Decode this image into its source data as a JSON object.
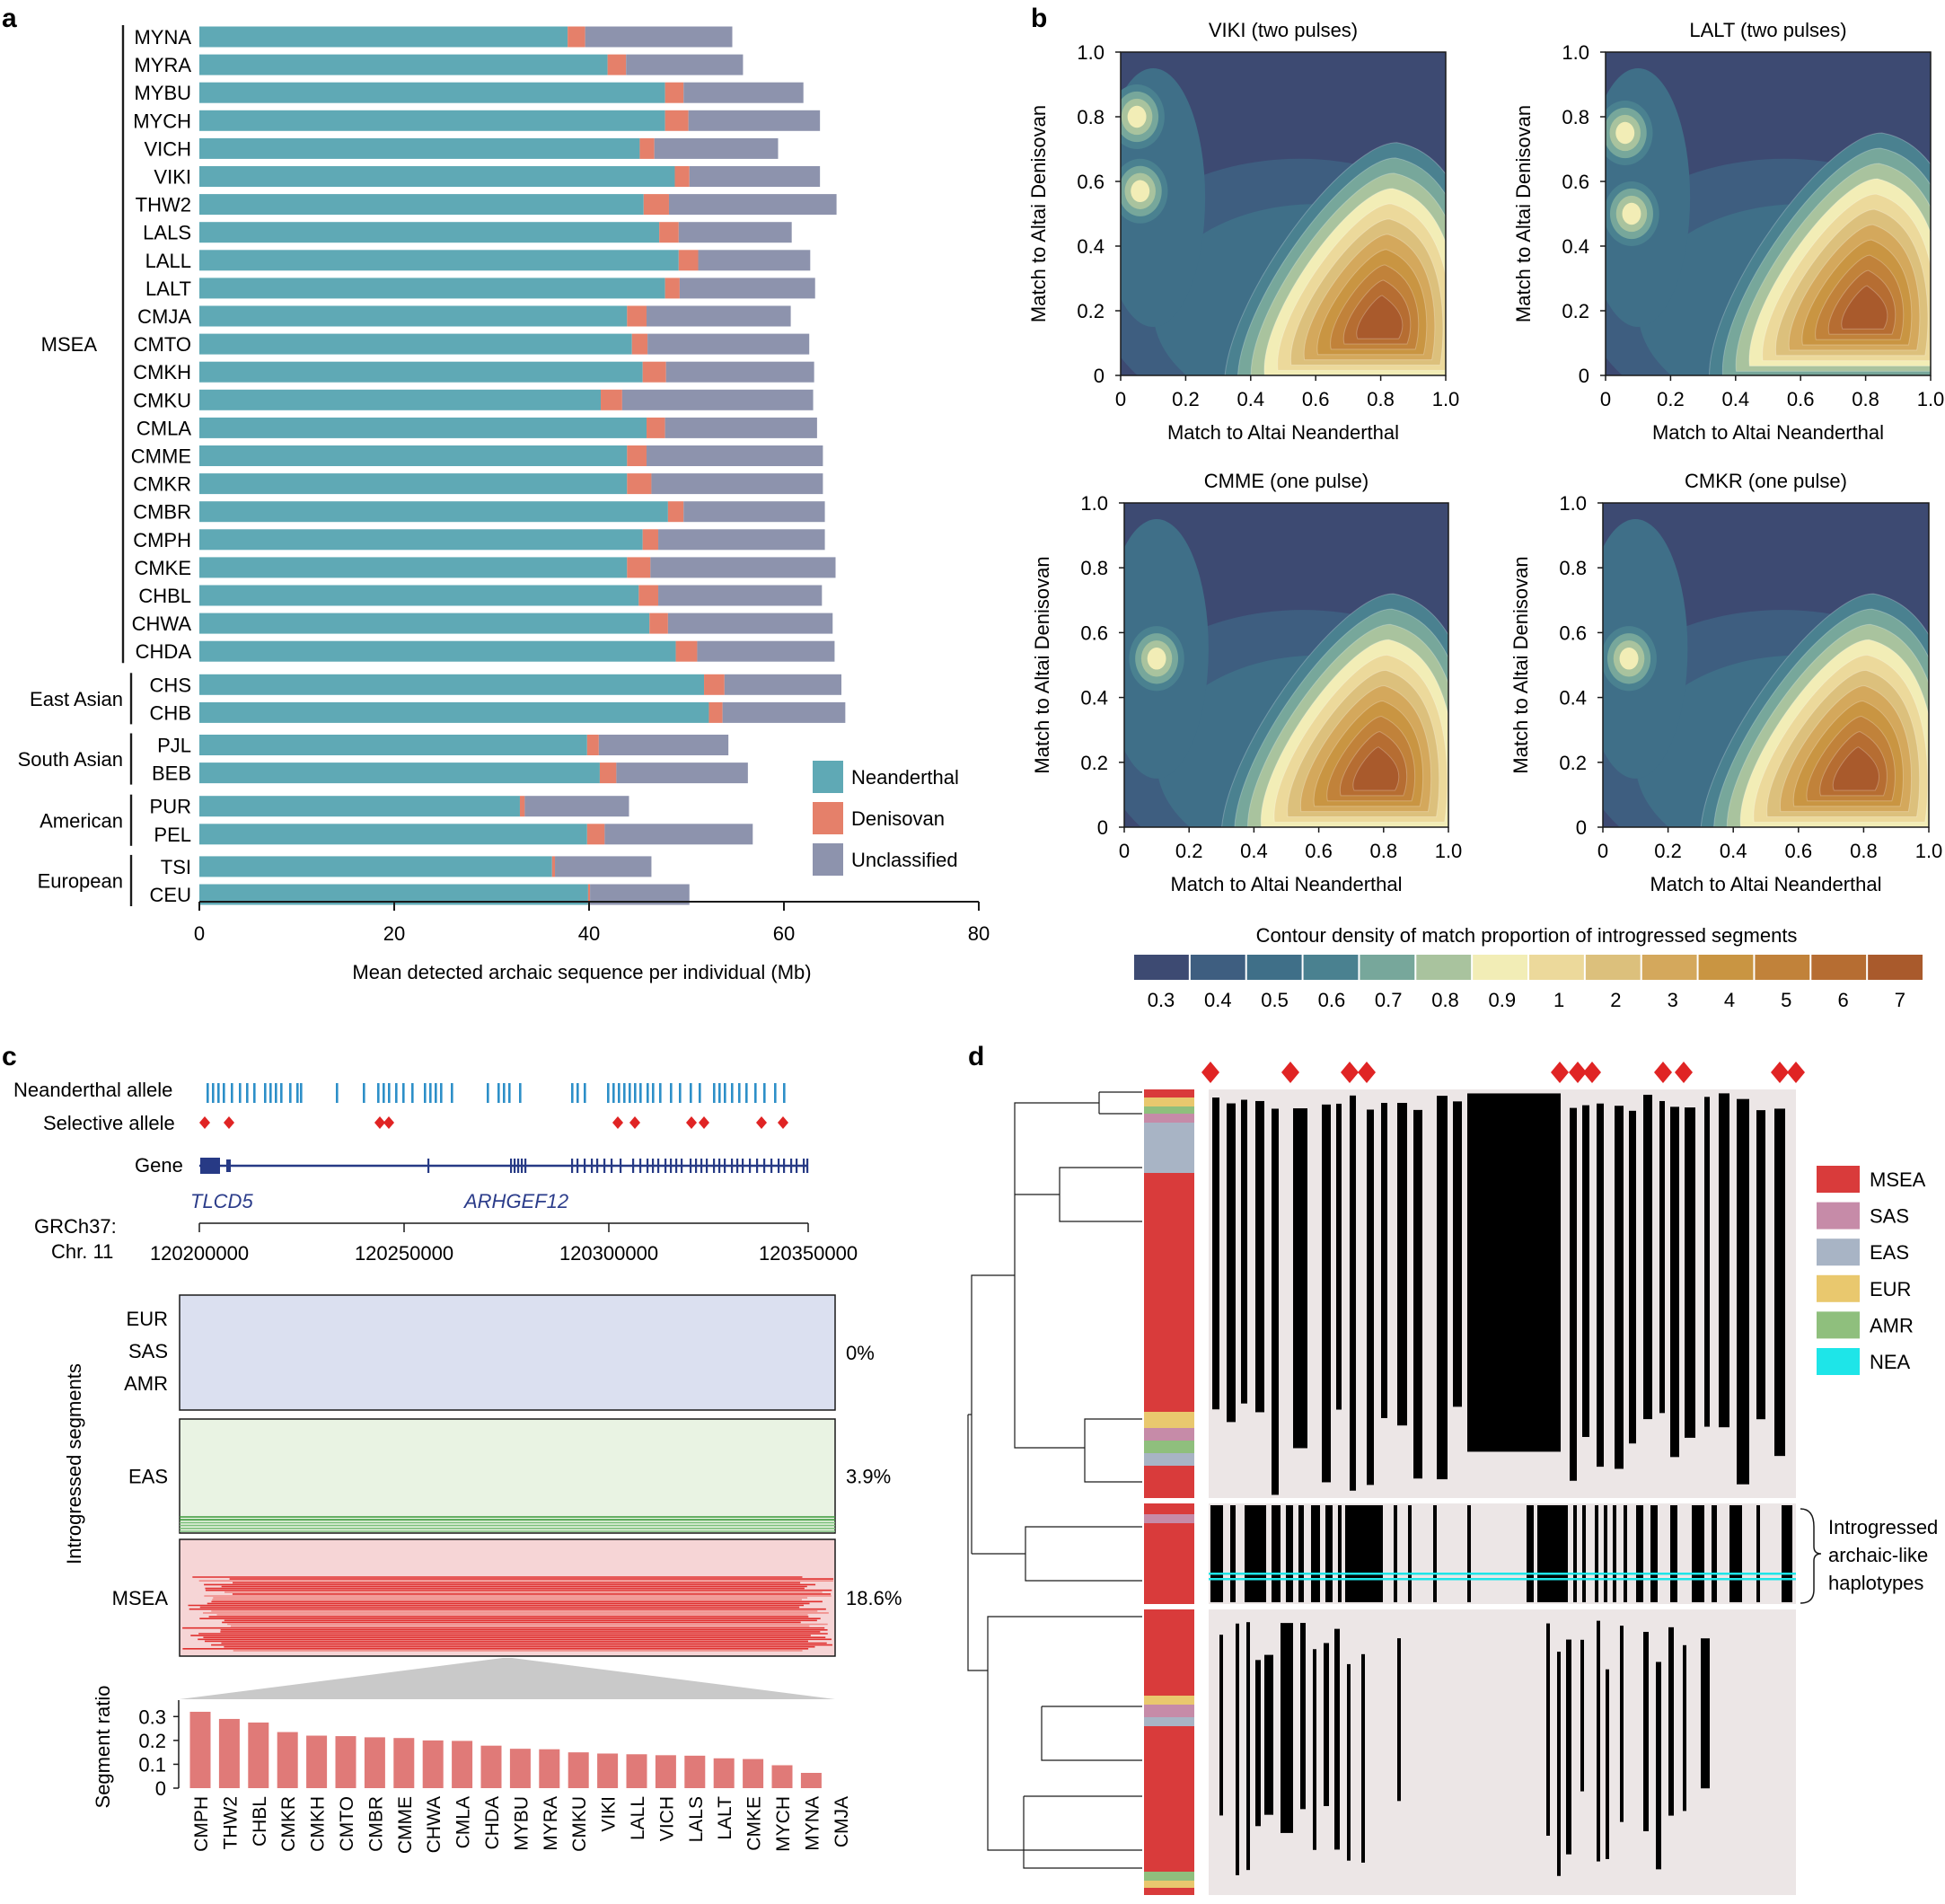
{
  "chart_data": [
    {
      "panel": "a",
      "type": "bar",
      "stacked": true,
      "orientation": "horizontal",
      "xlabel": "Mean detected archaic sequence per individual (Mb)",
      "xlim": [
        0,
        80
      ],
      "xticks": [
        "0",
        "20",
        "40",
        "60",
        "80"
      ],
      "legend": [
        "Neanderthal",
        "Denisovan",
        "Unclassified"
      ],
      "colors": {
        "Neanderthal": "#5fa9b5",
        "Denisovan": "#e5806a",
        "Unclassified": "#8d93ad"
      },
      "groups": [
        {
          "name": "MSEA",
          "rows": [
            {
              "label": "MYNA",
              "nea": 37.8,
              "den": 1.8,
              "unc": 15.1
            },
            {
              "label": "MYRA",
              "nea": 41.9,
              "den": 1.9,
              "unc": 12.0
            },
            {
              "label": "MYBU",
              "nea": 47.8,
              "den": 1.9,
              "unc": 12.3
            },
            {
              "label": "MYCH",
              "nea": 47.8,
              "den": 2.4,
              "unc": 13.5
            },
            {
              "label": "VICH",
              "nea": 45.2,
              "den": 1.5,
              "unc": 12.7
            },
            {
              "label": "VIKI",
              "nea": 48.8,
              "den": 1.5,
              "unc": 13.4
            },
            {
              "label": "THW2",
              "nea": 45.6,
              "den": 2.6,
              "unc": 17.2
            },
            {
              "label": "LALS",
              "nea": 47.2,
              "den": 2.0,
              "unc": 11.6
            },
            {
              "label": "LALL",
              "nea": 49.2,
              "den": 2.0,
              "unc": 11.5
            },
            {
              "label": "LALT",
              "nea": 47.8,
              "den": 1.5,
              "unc": 13.9
            },
            {
              "label": "CMJA",
              "nea": 43.9,
              "den": 2.0,
              "unc": 14.8
            },
            {
              "label": "CMTO",
              "nea": 44.4,
              "den": 1.6,
              "unc": 16.6
            },
            {
              "label": "CMKH",
              "nea": 45.5,
              "den": 2.4,
              "unc": 15.2
            },
            {
              "label": "CMKU",
              "nea": 41.2,
              "den": 2.2,
              "unc": 19.6
            },
            {
              "label": "CMLA",
              "nea": 45.9,
              "den": 1.9,
              "unc": 15.6
            },
            {
              "label": "CMME",
              "nea": 43.9,
              "den": 2.0,
              "unc": 18.1
            },
            {
              "label": "CMKR",
              "nea": 43.9,
              "den": 2.5,
              "unc": 17.6
            },
            {
              "label": "CMBR",
              "nea": 48.1,
              "den": 1.6,
              "unc": 14.5
            },
            {
              "label": "CMPH",
              "nea": 45.5,
              "den": 1.6,
              "unc": 17.1
            },
            {
              "label": "CMKE",
              "nea": 43.9,
              "den": 2.4,
              "unc": 19.0
            },
            {
              "label": "CHBL",
              "nea": 45.1,
              "den": 2.0,
              "unc": 16.8
            },
            {
              "label": "CHWA",
              "nea": 46.2,
              "den": 1.9,
              "unc": 16.9
            },
            {
              "label": "CHDA",
              "nea": 48.9,
              "den": 2.2,
              "unc": 14.1
            }
          ]
        },
        {
          "name": "East Asian",
          "rows": [
            {
              "label": "CHS",
              "nea": 51.8,
              "den": 2.1,
              "unc": 12.0
            },
            {
              "label": "CHB",
              "nea": 52.3,
              "den": 1.4,
              "unc": 12.6
            }
          ]
        },
        {
          "name": "South Asian",
          "rows": [
            {
              "label": "PJL",
              "nea": 39.8,
              "den": 1.2,
              "unc": 13.3
            },
            {
              "label": "BEB",
              "nea": 41.1,
              "den": 1.7,
              "unc": 13.5
            }
          ]
        },
        {
          "name": "American",
          "rows": [
            {
              "label": "PUR",
              "nea": 32.9,
              "den": 0.5,
              "unc": 10.7
            },
            {
              "label": "PEL",
              "nea": 39.8,
              "den": 1.8,
              "unc": 15.2
            }
          ]
        },
        {
          "name": "European",
          "rows": [
            {
              "label": "TSI",
              "nea": 36.2,
              "den": 0.3,
              "unc": 9.9
            },
            {
              "label": "CEU",
              "nea": 39.9,
              "den": 0.2,
              "unc": 10.2
            }
          ]
        }
      ]
    },
    {
      "panel": "b",
      "type": "heatmap",
      "kind": "2D density contour",
      "xlabel": "Match to Altai Neanderthal",
      "ylabel": "Match to Altai Denisovan",
      "xlim": [
        0,
        1
      ],
      "ylim": [
        0,
        1
      ],
      "ticks": [
        "0",
        "0.2",
        "0.4",
        "0.6",
        "0.8",
        "1.0"
      ],
      "colorbar_title": "Contour density of match proportion of introgressed segments",
      "colorbar_labels": [
        "0.3",
        "0.4",
        "0.5",
        "0.6",
        "0.7",
        "0.8",
        "0.9",
        "1",
        "2",
        "3",
        "4",
        "5",
        "6",
        "7"
      ],
      "colorbar_colors": [
        "#3d4a72",
        "#3e5e80",
        "#3f6f88",
        "#4a8190",
        "#77a79b",
        "#a9c39e",
        "#f2edb6",
        "#ecd99b",
        "#dcc07c",
        "#d4a85c",
        "#c99542",
        "#c1823a",
        "#b66d32",
        "#a95a2c"
      ],
      "plots": [
        {
          "title": "VIKI (two pulses)",
          "main_peak": {
            "x": 0.8,
            "y": 0.15
          },
          "secondary": [
            {
              "x": 0.05,
              "y": 0.8
            },
            {
              "x": 0.06,
              "y": 0.57
            }
          ]
        },
        {
          "title": "LALT (two pulses)",
          "main_peak": {
            "x": 0.8,
            "y": 0.18
          },
          "secondary": [
            {
              "x": 0.06,
              "y": 0.75
            },
            {
              "x": 0.08,
              "y": 0.5
            }
          ]
        },
        {
          "title": "CMME (one pulse)",
          "main_peak": {
            "x": 0.78,
            "y": 0.15
          },
          "secondary": [
            {
              "x": 0.1,
              "y": 0.52
            }
          ]
        },
        {
          "title": "CMKR (one pulse)",
          "main_peak": {
            "x": 0.78,
            "y": 0.15
          },
          "secondary": [
            {
              "x": 0.08,
              "y": 0.52
            }
          ]
        }
      ]
    },
    {
      "panel": "c",
      "type": "bar",
      "ylabel": "Segment ratio",
      "ylim": [
        0,
        0.35
      ],
      "yticks": [
        "0",
        "0.1",
        "0.2",
        "0.3"
      ],
      "categories": [
        "CMPH",
        "THW2",
        "CHBL",
        "CMKR",
        "CMKH",
        "CMTO",
        "CMBR",
        "CMME",
        "CHWA",
        "CMLA",
        "CHDA",
        "MYBU",
        "MYRA",
        "CMKU",
        "VIKI",
        "LALL",
        "VICH",
        "LALS",
        "LALT",
        "CMKE",
        "MYCH",
        "MYNA",
        "CMJA"
      ],
      "values": [
        0.32,
        0.29,
        0.275,
        0.235,
        0.22,
        0.218,
        0.213,
        0.21,
        0.2,
        0.198,
        0.178,
        0.165,
        0.163,
        0.15,
        0.145,
        0.142,
        0.138,
        0.136,
        0.125,
        0.122,
        0.096,
        0.064,
        0.0
      ],
      "bar_color": "#e07a78"
    },
    {
      "panel": "d",
      "type": "heatmap",
      "kind": "haplotype clustering with dendrogram",
      "legend": [
        {
          "label": "MSEA",
          "color": "#d93b3b"
        },
        {
          "label": "SAS",
          "color": "#c68ba8"
        },
        {
          "label": "EAS",
          "color": "#a8b4c5"
        },
        {
          "label": "EUR",
          "color": "#e9c86e"
        },
        {
          "label": "AMR",
          "color": "#8fbf7d"
        },
        {
          "label": "NEA",
          "color": "#1ee5e8"
        }
      ],
      "cluster_label": "Introgressed archaic-like haplotypes"
    }
  ],
  "panel_labels": {
    "a": "a",
    "b": "b",
    "c": "c",
    "d": "d"
  },
  "panel_c": {
    "tracks": {
      "neanderthal": "Neanderthal allele",
      "selective": "Selective allele",
      "gene": "Gene"
    },
    "genes": [
      "TLCD5",
      "ARHGEF12"
    ],
    "coord_label_1": "GRCh37:",
    "coord_label_2": "Chr. 11",
    "coord_ticks": [
      "120200000",
      "120250000",
      "120300000",
      "120350000"
    ],
    "ylabel": "Introgressed segments",
    "boxes": [
      {
        "labels": [
          "EUR",
          "SAS",
          "AMR"
        ],
        "pct": "0%"
      },
      {
        "labels": [
          "EAS"
        ],
        "pct": "3.9%"
      },
      {
        "labels": [
          "MSEA"
        ],
        "pct": "18.6%"
      }
    ]
  }
}
